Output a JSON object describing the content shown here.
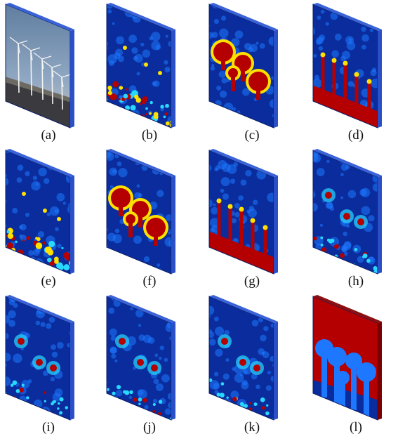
{
  "figure": {
    "panels": [
      {
        "label": "(a)",
        "kind": "photo",
        "subject": "wind turbines photograph"
      },
      {
        "label": "(b)",
        "kind": "heatmap",
        "pattern": "ground-clutter"
      },
      {
        "label": "(c)",
        "kind": "heatmap",
        "pattern": "large-blobs"
      },
      {
        "label": "(d)",
        "kind": "heatmap",
        "pattern": "spiky-bottom"
      },
      {
        "label": "(e)",
        "kind": "heatmap",
        "pattern": "ground-clutter"
      },
      {
        "label": "(f)",
        "kind": "heatmap",
        "pattern": "large-blobs"
      },
      {
        "label": "(g)",
        "kind": "heatmap",
        "pattern": "spiky-bottom"
      },
      {
        "label": "(h)",
        "kind": "heatmap",
        "pattern": "sparse-spots"
      },
      {
        "label": "(i)",
        "kind": "heatmap",
        "pattern": "sparse-spots"
      },
      {
        "label": "(j)",
        "kind": "heatmap",
        "pattern": "sparse-spots"
      },
      {
        "label": "(k)",
        "kind": "heatmap",
        "pattern": "sparse-spots"
      },
      {
        "label": "(l)",
        "kind": "mask",
        "pattern": "saturated-mask"
      }
    ],
    "colors": {
      "low": "#0a2c9c",
      "mid": "#1e78ff",
      "cyan": "#29d8ff",
      "yellow": "#ffe000",
      "high": "#b40000",
      "sky": "#8fa7c2",
      "ground": "#3b3a3f"
    }
  }
}
